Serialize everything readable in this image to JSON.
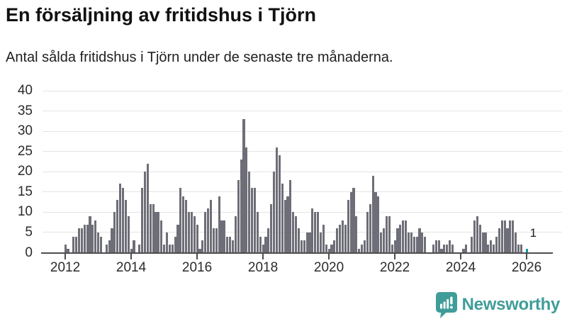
{
  "header": {
    "title": "En försäljning av fritidshus i Tjörn",
    "subtitle": "Antal sålda fritidshus i Tjörn under de senaste tre månaderna."
  },
  "chart_data": {
    "type": "bar",
    "title": "En försäljning av fritidshus i Tjörn",
    "subtitle": "Antal sålda fritidshus i Tjörn under de senaste tre månaderna.",
    "x_start": "2012-01",
    "x_end": "2026-01",
    "x_unit": "month",
    "values": [
      2,
      1,
      0,
      4,
      4,
      6,
      6,
      7,
      7,
      9,
      7,
      8,
      5,
      4,
      0,
      2,
      3,
      6,
      10,
      13,
      17,
      16,
      13,
      9,
      1,
      3,
      0,
      2,
      16,
      20,
      22,
      12,
      12,
      10,
      10,
      8,
      2,
      5,
      2,
      2,
      4,
      7,
      16,
      14,
      13,
      10,
      10,
      9,
      7,
      1,
      3,
      10,
      11,
      13,
      6,
      6,
      14,
      8,
      8,
      4,
      4,
      3,
      9,
      18,
      23,
      33,
      26,
      20,
      16,
      16,
      10,
      4,
      2,
      4,
      6,
      12,
      20,
      26,
      24,
      17,
      13,
      14,
      18,
      10,
      9,
      6,
      3,
      3,
      5,
      5,
      11,
      10,
      10,
      5,
      7,
      2,
      1,
      2,
      3,
      6,
      7,
      8,
      7,
      13,
      15,
      16,
      9,
      1,
      2,
      3,
      10,
      12,
      19,
      15,
      14,
      5,
      6,
      9,
      9,
      2,
      3,
      6,
      7,
      8,
      8,
      5,
      5,
      4,
      4,
      6,
      5,
      4,
      0,
      0,
      2,
      3,
      3,
      1,
      2,
      2,
      3,
      2,
      0,
      0,
      0,
      1,
      2,
      0,
      4,
      8,
      9,
      7,
      5,
      5,
      2,
      3,
      2,
      4,
      6,
      8,
      8,
      6,
      8,
      8,
      5,
      2,
      2,
      0,
      1
    ],
    "highlight_last": true,
    "last_value_label": "1",
    "y_ticks": [
      0,
      5,
      10,
      15,
      20,
      25,
      30,
      35,
      40
    ],
    "ylim": [
      0,
      40
    ],
    "x_tick_years": [
      "2012",
      "2014",
      "2016",
      "2018",
      "2020",
      "2022",
      "2024",
      "2026"
    ],
    "grid": "horizontal",
    "legend": "none",
    "colors": {
      "bar": "#6e6e78",
      "highlight": "#13999a",
      "gridline": "#e4e4e4",
      "axis": "#4d4d4d",
      "text": "#2b2b2b"
    }
  },
  "footer": {
    "brand": "Newsworthy",
    "brand_color": "#3f9d99",
    "logo_icon": "bar-chart-speech-bubble-icon"
  }
}
